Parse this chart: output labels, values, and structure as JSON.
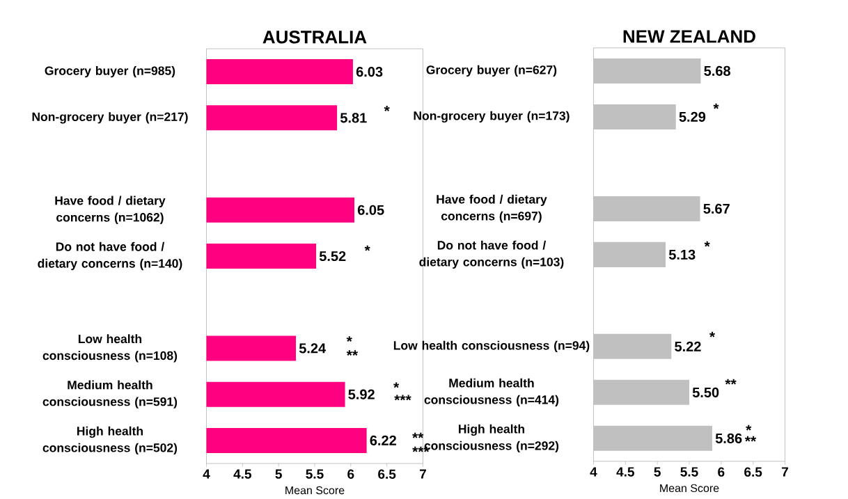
{
  "chart_data": [
    {
      "type": "bar",
      "orientation": "horizontal",
      "title": "AUSTRALIA",
      "xlabel": "Mean Score",
      "categories": [
        "Grocery buyer (n=985)",
        "Non-grocery buyer (n=217)",
        null,
        "Have food / dietary concerns (n=1062)",
        "Do not have food / dietary concerns (n=140)",
        null,
        "Low health consciousness (n=108)",
        "Medium health consciousness (n=591)",
        "High health consciousness (n=502)"
      ],
      "values": [
        6.03,
        5.81,
        null,
        6.05,
        5.52,
        null,
        5.24,
        5.92,
        6.22
      ],
      "value_labels": [
        "6.03",
        "5.81",
        null,
        "6.05",
        "5.52",
        null,
        "5.24",
        "5.92",
        "6.22"
      ],
      "color": "#ff0080",
      "xlim": [
        4,
        7
      ],
      "xticks": [
        4,
        4.5,
        5,
        5.5,
        6,
        6.5,
        7
      ],
      "grid": false,
      "annotations": [
        "*",
        "*",
        "*",
        "**",
        "*",
        "***",
        "**",
        "***"
      ]
    },
    {
      "type": "bar",
      "orientation": "horizontal",
      "title": "NEW ZEALAND",
      "xlabel": "Mean Score",
      "categories": [
        "Grocery buyer (n=627)",
        "Non-grocery buyer (n=173)",
        null,
        "Have food / dietary concerns (n=697)",
        "Do not have food / dietary concerns (n=103)",
        null,
        "Low health consciousness (n=94)",
        "Medium health consciousness (n=414)",
        "High health consciousness (n=292)"
      ],
      "values": [
        5.68,
        5.29,
        null,
        5.67,
        5.13,
        null,
        5.22,
        5.5,
        5.86
      ],
      "value_labels": [
        "5.68",
        "5.29",
        null,
        "5.67",
        "5.13",
        null,
        "5.22",
        "5.50",
        "5.86"
      ],
      "color": "#c0c0c0",
      "xlim": [
        4,
        7
      ],
      "xticks": [
        4,
        4.5,
        5,
        5.5,
        6,
        6.5,
        7
      ],
      "grid": false,
      "annotations": [
        "*",
        "*",
        "*",
        "**",
        "*",
        "**"
      ]
    }
  ]
}
